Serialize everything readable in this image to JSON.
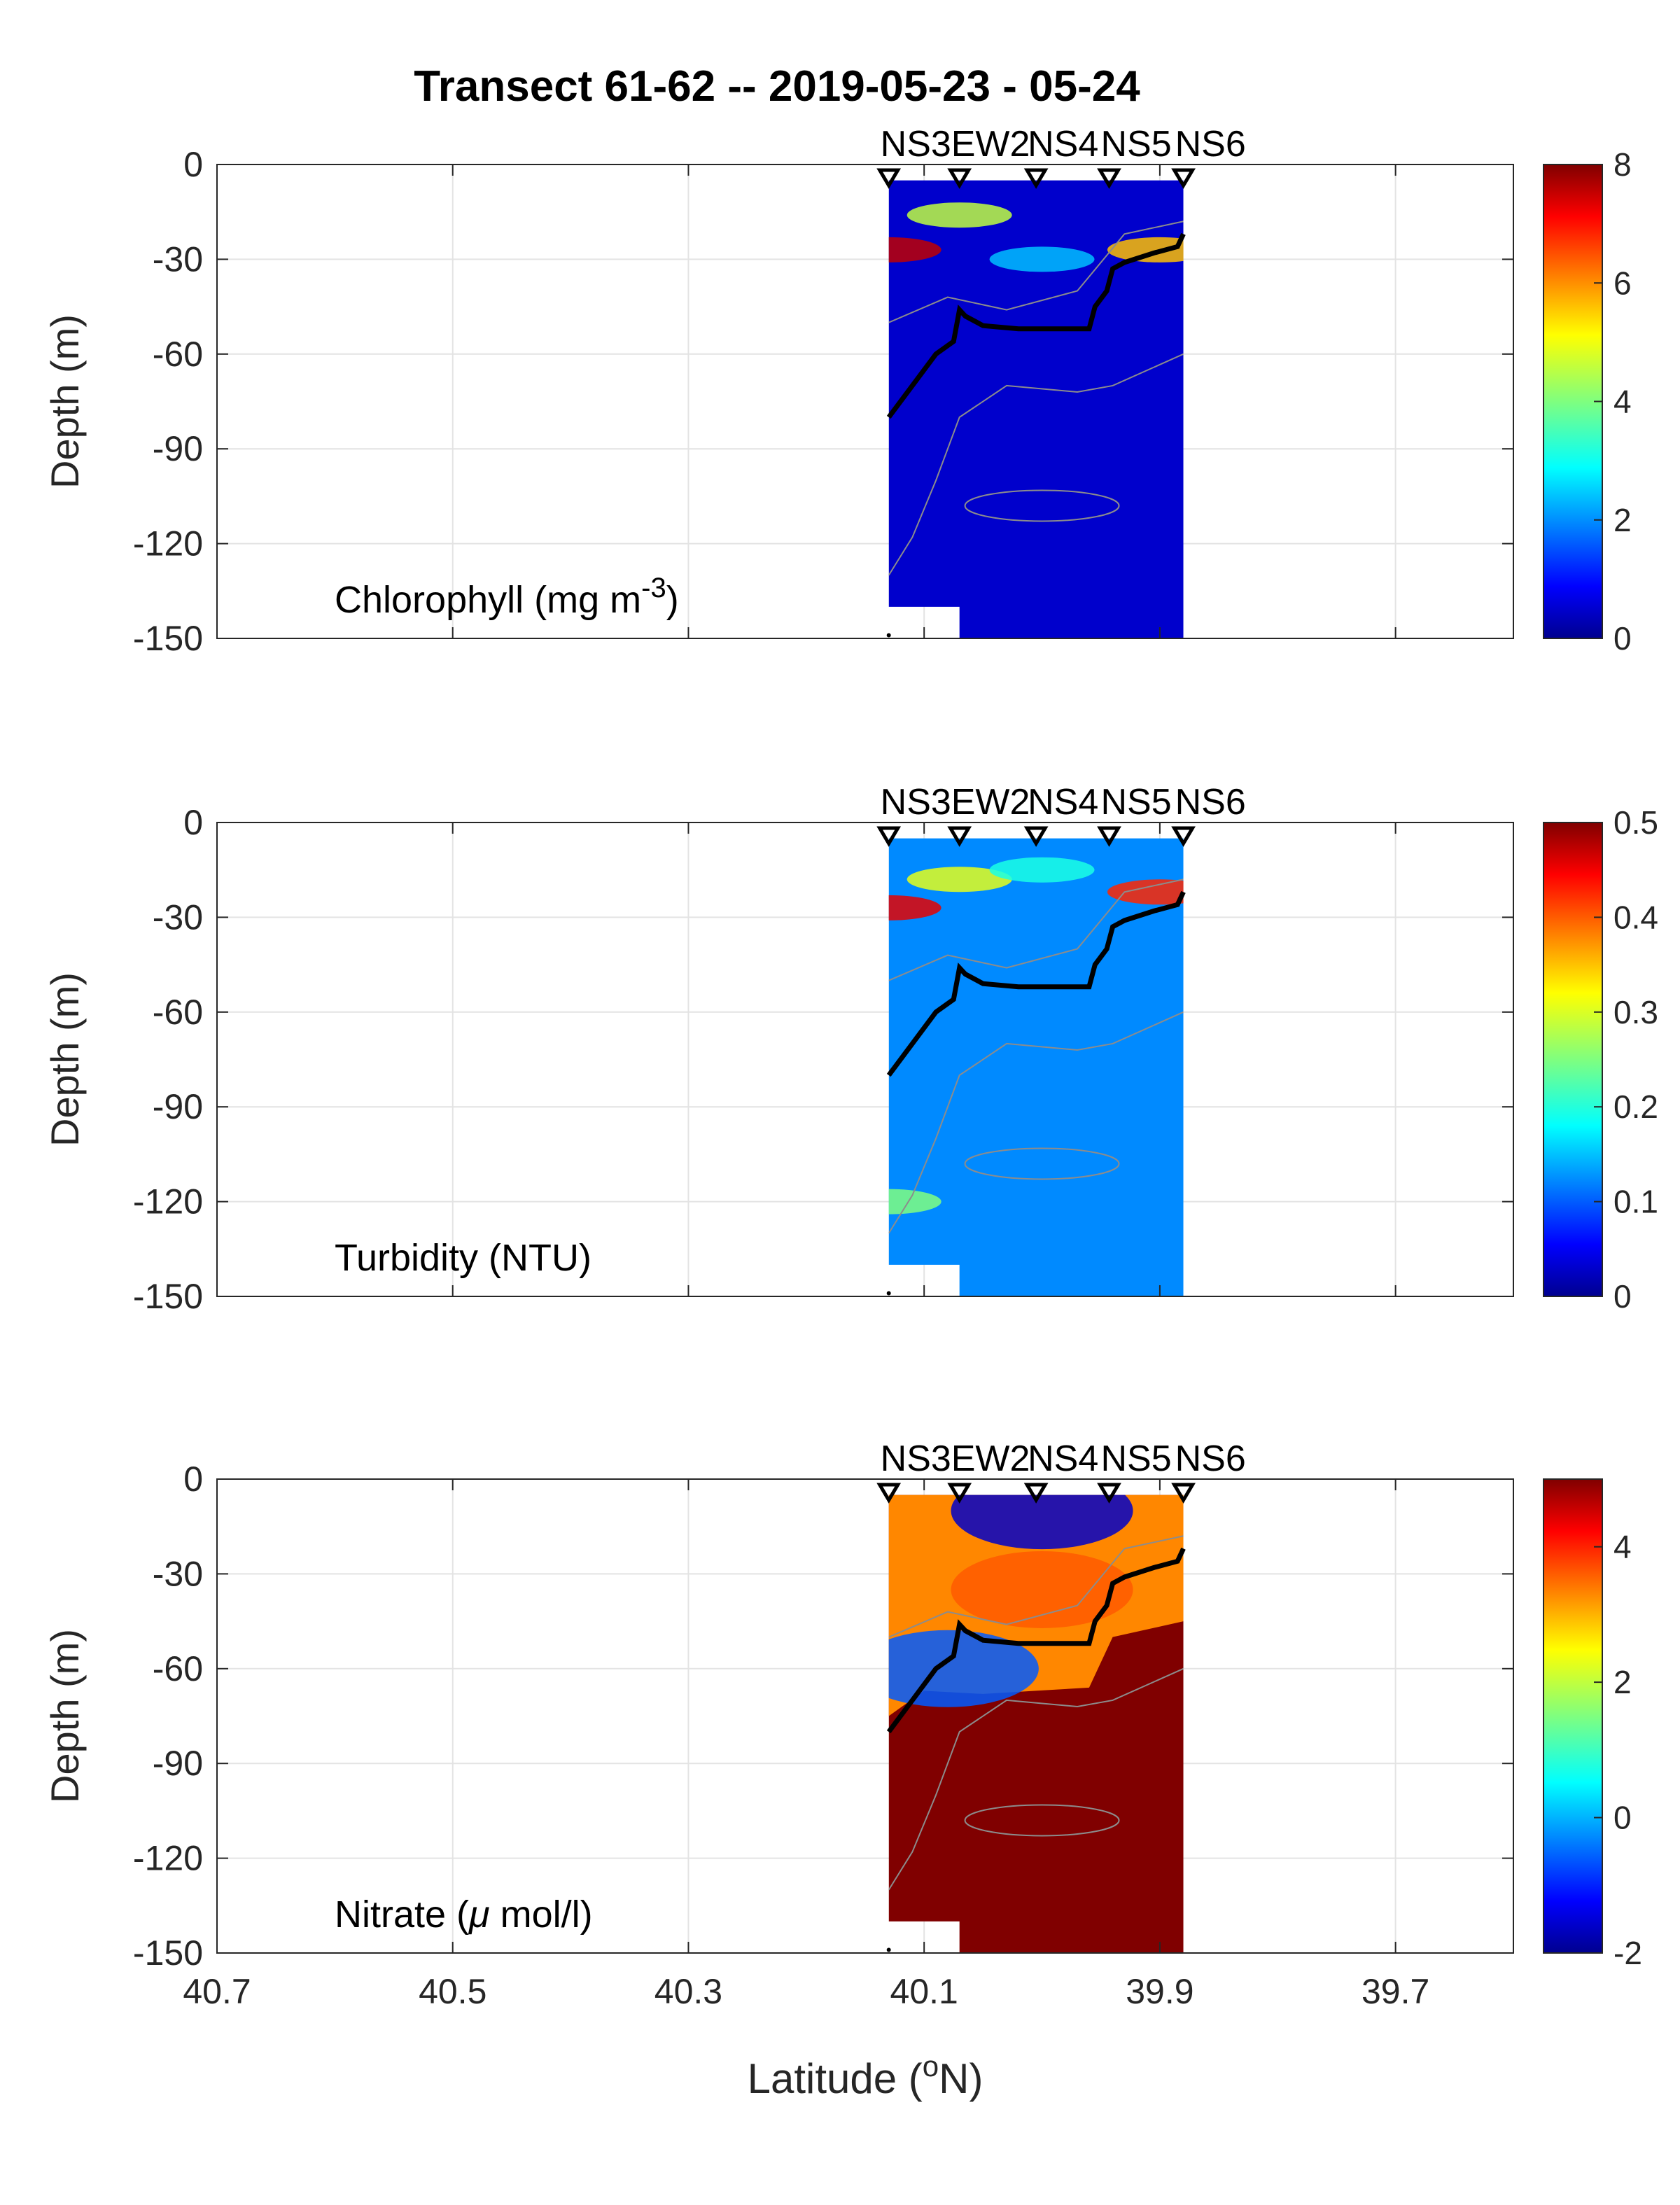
{
  "chart_data": {
    "title": "Transect 61-62 -- 2019-05-23 - 05-24",
    "type": "heatmap",
    "xlabel": "Latitude (ᴼN)",
    "xlabel_parts": {
      "pre": "Latitude (",
      "sup": "o",
      "post": "N)"
    },
    "xlim": [
      40.7,
      39.6
    ],
    "x_reversed": true,
    "x_ticks": [
      40.7,
      40.5,
      40.3,
      40.1,
      39.9,
      39.7
    ],
    "x_tick_labels": [
      "40.7",
      "40.5",
      "40.3",
      "40.1",
      "39.9",
      "39.7"
    ],
    "ylabel": "Depth (m)",
    "ylim": [
      -150,
      0
    ],
    "y_ticks": [
      0,
      -30,
      -60,
      -90,
      -120,
      -150
    ],
    "y_tick_labels": [
      "0",
      "-30",
      "-60",
      "-90",
      "-120",
      "-150"
    ],
    "grid": true,
    "colormap": "jet",
    "data_extent": {
      "lat_north": 40.13,
      "lat_south": 39.88,
      "depth_top": -5,
      "depth_bottom": -150
    },
    "stations": [
      {
        "name": "NS3",
        "lat": 40.13
      },
      {
        "name": "EW2",
        "lat": 40.07
      },
      {
        "name": "NS4",
        "lat": 40.005
      },
      {
        "name": "NS5",
        "lat": 39.943
      },
      {
        "name": "NS6",
        "lat": 39.88
      }
    ],
    "mixed_layer_depth": {
      "lat": [
        40.13,
        40.11,
        40.09,
        40.075,
        40.07,
        40.065,
        40.05,
        40.02,
        39.99,
        39.96,
        39.955,
        39.945,
        39.94,
        39.93,
        39.905,
        39.885,
        39.88
      ],
      "depth": [
        -80,
        -70,
        -60,
        -56,
        -46,
        -48,
        -51,
        -52,
        -52,
        -52,
        -45,
        -40,
        -33,
        -31,
        -28,
        -26,
        -22
      ]
    },
    "panels": [
      {
        "label": "Chlorophyll (mg m",
        "label_sup": "-3",
        "label_end": ")",
        "colorbar": {
          "min": 0,
          "max": 8,
          "ticks": [
            0,
            2,
            4,
            6,
            8
          ],
          "tick_labels": [
            "0",
            "2",
            "4",
            "6",
            "8"
          ]
        },
        "background_value": 0.6,
        "features": [
          {
            "lat": 40.13,
            "depth": -27,
            "value": 7.5
          },
          {
            "lat": 40.07,
            "depth": -16,
            "value": 4.5
          },
          {
            "lat": 39.9,
            "depth": -27,
            "value": 5.5
          },
          {
            "lat": 40.0,
            "depth": -30,
            "value": 2.5
          }
        ]
      },
      {
        "label": "Turbidity (NTU)",
        "colorbar": {
          "min": 0,
          "max": 0.5,
          "ticks": [
            0,
            0.1,
            0.2,
            0.3,
            0.4,
            0.5
          ],
          "tick_labels": [
            "0",
            "0.1",
            "0.2",
            "0.3",
            "0.4",
            "0.5"
          ]
        },
        "background_value": 0.13,
        "features": [
          {
            "lat": 40.13,
            "depth": -27,
            "value": 0.45
          },
          {
            "lat": 39.9,
            "depth": -22,
            "value": 0.42
          },
          {
            "lat": 40.07,
            "depth": -18,
            "value": 0.3
          },
          {
            "lat": 40.13,
            "depth": -120,
            "value": 0.25
          },
          {
            "lat": 40.0,
            "depth": -15,
            "value": 0.2
          }
        ]
      },
      {
        "label": "Nitrate (",
        "label_greek": "μ",
        "label_end": " mol/l)",
        "colorbar": {
          "min": -2,
          "max": 5,
          "ticks": [
            -2,
            0,
            2,
            4
          ],
          "tick_labels": [
            "-2",
            "0",
            "2",
            "4"
          ]
        },
        "background_value": 5,
        "features": [
          {
            "lat": 40.0,
            "depth": -10,
            "value": -1.5
          },
          {
            "lat": 40.0,
            "depth": -35,
            "value": 3.5
          },
          {
            "lat": 40.08,
            "depth": -60,
            "value": -0.5
          }
        ]
      }
    ]
  }
}
